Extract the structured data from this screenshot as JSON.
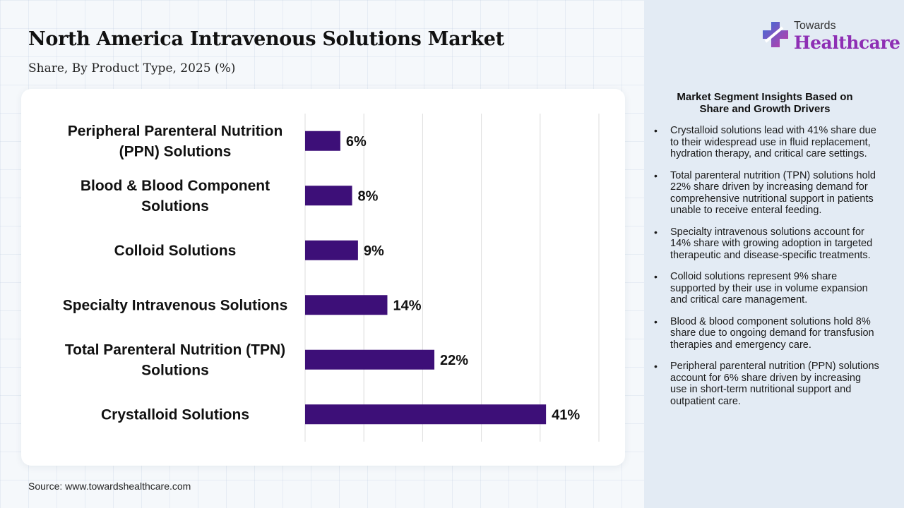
{
  "title": "North America Intravenous Solutions Market",
  "subtitle": "Share, By Product Type, 2025 (%)",
  "source": "Source: www.towardshealthcare.com",
  "logo": {
    "top": "Towards",
    "main": "Healthcare",
    "icon": "medical-cross-icon",
    "color": "#8e2fb4"
  },
  "chart_data": {
    "type": "bar",
    "orientation": "horizontal",
    "categories": [
      [
        "Peripheral Parenteral Nutrition",
        "(PPN) Solutions"
      ],
      [
        "Blood & Blood Component",
        "Solutions"
      ],
      [
        "Colloid Solutions"
      ],
      [
        "Specialty Intravenous Solutions"
      ],
      [
        "Total Parenteral Nutrition (TPN)",
        "Solutions"
      ],
      [
        "Crystalloid Solutions"
      ]
    ],
    "values": [
      6,
      8,
      9,
      14,
      22,
      41
    ],
    "value_labels": [
      "6%",
      "8%",
      "9%",
      "14%",
      "22%",
      "41%"
    ],
    "xlim": [
      0,
      50
    ],
    "grid": true,
    "bar_color": "#3d0f78"
  },
  "insights": {
    "title_lines": [
      "Market Segment Insights Based on",
      "Share and Growth Drivers"
    ],
    "items": [
      "Crystalloid solutions lead with 41% share due to their widespread use in fluid replacement, hydration therapy, and critical care settings.",
      "Total parenteral nutrition (TPN) solutions hold 22% share driven by increasing demand for comprehensive nutritional support in patients unable to receive enteral feeding.",
      "Specialty intravenous solutions account for 14% share with growing adoption in targeted therapeutic and disease-specific treatments.",
      "Colloid solutions represent 9% share supported by their use in volume expansion and critical care management.",
      "Blood & blood component solutions hold 8% share due to ongoing demand for transfusion therapies and emergency care.",
      "Peripheral parenteral nutrition (PPN) solutions account for 6% share driven by increasing use in short-term nutritional support and outpatient care."
    ]
  }
}
